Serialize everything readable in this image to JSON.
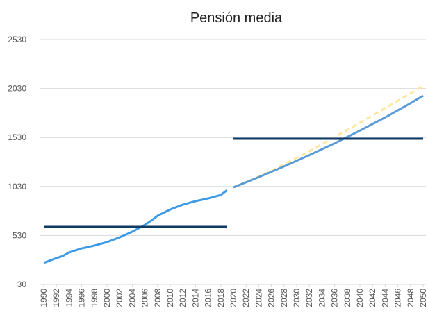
{
  "chart_data": {
    "type": "line",
    "title": "Pensión media",
    "xlim": [
      1990,
      2050
    ],
    "xticks": [
      1990,
      1992,
      1994,
      1996,
      1998,
      2000,
      2002,
      2004,
      2006,
      2008,
      2010,
      2012,
      2014,
      2016,
      2018,
      2020,
      2022,
      2024,
      2026,
      2028,
      2030,
      2032,
      2034,
      2036,
      2038,
      2040,
      2042,
      2044,
      2046,
      2048,
      2050
    ],
    "ylim": [
      30,
      2530
    ],
    "yticks": [
      30,
      530,
      1030,
      1530,
      2030,
      2530
    ],
    "grid": true,
    "series": [
      {
        "color": "#3d9be6",
        "dash": false,
        "x": [
          1990,
          1992,
          1993,
          1994,
          1996,
          1998,
          2000,
          2002,
          2004,
          2006,
          2007,
          2008,
          2010,
          2012,
          2014,
          2016,
          2018,
          2019
        ],
        "values": [
          250,
          299,
          320,
          356,
          398,
          426,
          462,
          511,
          568,
          639,
          681,
          731,
          795,
          844,
          880,
          908,
          943,
          993
        ]
      },
      {
        "color": "#ffe699",
        "dash": true,
        "x": [
          2020,
          2024,
          2028,
          2032,
          2036,
          2040,
          2044,
          2048,
          2050
        ],
        "values": [
          1021,
          1130,
          1255,
          1390,
          1535,
          1680,
          1830,
          1980,
          2055
        ]
      },
      {
        "color": "#5b9bd5",
        "dash": false,
        "x": [
          2020,
          2024,
          2028,
          2032,
          2036,
          2040,
          2044,
          2048,
          2050
        ],
        "values": [
          1021,
          1125,
          1235,
          1350,
          1470,
          1600,
          1735,
          1880,
          1956
        ]
      },
      {
        "color": "#0e3a66",
        "dash": false,
        "x": [
          1990,
          2019
        ],
        "values": [
          618,
          618
        ]
      },
      {
        "color": "#0e3a66",
        "dash": false,
        "x": [
          2020,
          2050
        ],
        "values": [
          1517,
          1517
        ]
      }
    ]
  }
}
